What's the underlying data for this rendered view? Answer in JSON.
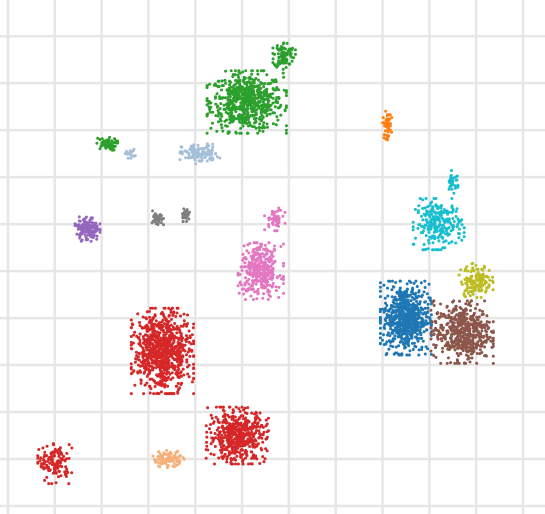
{
  "chart_data": {
    "type": "scatter",
    "title": "",
    "xlabel": "",
    "ylabel": "",
    "grid": true,
    "legend": "none",
    "tick_labels": "none",
    "background": "#ffffff",
    "grid_color": "#e6e6e6",
    "xlim": [
      0,
      11.3
    ],
    "ylim": [
      0,
      10.6
    ],
    "series": [
      {
        "color": "#2ca02c",
        "clusters": [
          {
            "center": [
              5.1,
              8.6
            ],
            "spread": [
              0.7,
              0.55
            ],
            "count": 650
          },
          {
            "center": [
              5.9,
              9.6
            ],
            "spread": [
              0.2,
              0.25
            ],
            "count": 90
          },
          {
            "center": [
              2.1,
              7.7
            ],
            "spread": [
              0.2,
              0.12
            ],
            "count": 60
          }
        ]
      },
      {
        "color": "#a5bfd8",
        "clusters": [
          {
            "center": [
              4.1,
              7.5
            ],
            "spread": [
              0.35,
              0.18
            ],
            "count": 120
          },
          {
            "center": [
              2.6,
              7.5
            ],
            "spread": [
              0.1,
              0.08
            ],
            "count": 20
          }
        ]
      },
      {
        "color": "#ff7f0e",
        "clusters": [
          {
            "center": [
              8.1,
              8.1
            ],
            "spread": [
              0.08,
              0.25
            ],
            "count": 50
          }
        ]
      },
      {
        "color": "#17becf",
        "clusters": [
          {
            "center": [
              9.2,
              6.0
            ],
            "spread": [
              0.45,
              0.45
            ],
            "count": 240
          },
          {
            "center": [
              9.5,
              6.9
            ],
            "spread": [
              0.12,
              0.2
            ],
            "count": 30
          }
        ]
      },
      {
        "color": "#1f77b4",
        "clusters": [
          {
            "center": [
              8.5,
              4.0
            ],
            "spread": [
              0.45,
              0.65
            ],
            "count": 650
          }
        ]
      },
      {
        "color": "#8c564b",
        "clusters": [
          {
            "center": [
              9.7,
              3.7
            ],
            "spread": [
              0.55,
              0.55
            ],
            "count": 520
          }
        ]
      },
      {
        "color": "#bcbd22",
        "clusters": [
          {
            "center": [
              10.0,
              4.8
            ],
            "spread": [
              0.3,
              0.3
            ],
            "count": 140
          }
        ]
      },
      {
        "color": "#9467bd",
        "clusters": [
          {
            "center": [
              1.7,
              5.9
            ],
            "spread": [
              0.22,
              0.22
            ],
            "count": 140
          }
        ]
      },
      {
        "color": "#7f7f7f",
        "clusters": [
          {
            "center": [
              3.2,
              6.1
            ],
            "spread": [
              0.1,
              0.15
            ],
            "count": 40
          },
          {
            "center": [
              3.8,
              6.2
            ],
            "spread": [
              0.08,
              0.12
            ],
            "count": 35
          }
        ]
      },
      {
        "color": "#e377c2",
        "clusters": [
          {
            "center": [
              5.4,
              5.0
            ],
            "spread": [
              0.4,
              0.5
            ],
            "count": 330
          },
          {
            "center": [
              5.7,
              6.1
            ],
            "spread": [
              0.18,
              0.2
            ],
            "count": 50
          }
        ]
      },
      {
        "color": "#d62728",
        "clusters": [
          {
            "center": [
              3.3,
              3.3
            ],
            "spread": [
              0.55,
              0.75
            ],
            "count": 800
          },
          {
            "center": [
              4.9,
              1.5
            ],
            "spread": [
              0.55,
              0.5
            ],
            "count": 520
          },
          {
            "center": [
              1.0,
              0.9
            ],
            "spread": [
              0.3,
              0.35
            ],
            "count": 130
          }
        ]
      },
      {
        "color": "#f5b07a",
        "clusters": [
          {
            "center": [
              3.4,
              1.0
            ],
            "spread": [
              0.3,
              0.15
            ],
            "count": 90
          }
        ]
      }
    ]
  }
}
